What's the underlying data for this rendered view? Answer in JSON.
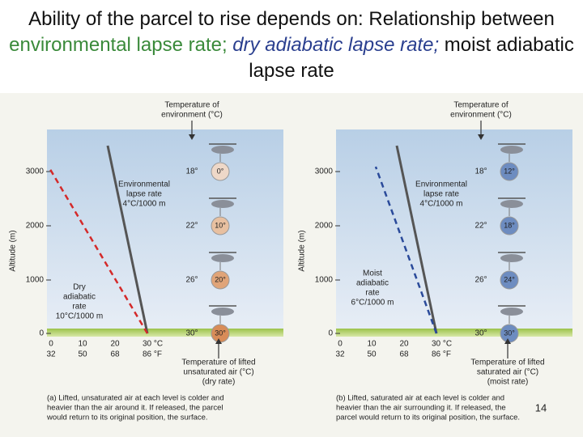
{
  "title": {
    "lead": "Ability of the parcel to rise depends on: Relationship between",
    "environmental": "environmental lapse rate;",
    "dry": "dry adiabatic lapse rate;",
    "moist": "moist adiabatic lapse rate"
  },
  "panels": [
    {
      "top_label": [
        "Temperature of",
        "environment (°C)"
      ],
      "y_axis_label": "Altitude (m)",
      "altitudes": [
        "3000",
        "2000",
        "1000",
        "0"
      ],
      "environment_temps": [
        "18°",
        "22°",
        "26°",
        "30°"
      ],
      "parcel_temps": [
        "0°",
        "10°",
        "20°",
        "30°"
      ],
      "environment_label": [
        "Environmental",
        "lapse rate",
        "4°C/1000 m"
      ],
      "parcel_rate_label": [
        "Dry",
        "adiabatic",
        "rate",
        "10°C/1000 m"
      ],
      "celsius_ticks": [
        "0",
        "10",
        "20",
        "30 °C"
      ],
      "fahrenheit_ticks": [
        "32",
        "50",
        "68",
        "86 °F"
      ],
      "bottom_label": [
        "Temperature of lifted",
        "unsaturated air (°C)",
        "(dry rate)"
      ],
      "caption": [
        "(a) Lifted, unsaturated air at each level is colder and",
        "heavier than the air around it. If released, the parcel",
        "would return to its original position, the surface."
      ]
    },
    {
      "top_label": [
        "Temperature of",
        "environment (°C)"
      ],
      "y_axis_label": "Altitude (m)",
      "altitudes": [
        "3000",
        "2000",
        "1000",
        "0"
      ],
      "environment_temps": [
        "18°",
        "22°",
        "26°",
        "30°"
      ],
      "parcel_temps": [
        "12°",
        "18°",
        "24°",
        "30°"
      ],
      "environment_label": [
        "Environmental",
        "lapse rate",
        "4°C/1000 m"
      ],
      "parcel_rate_label": [
        "Moist",
        "adiabatic",
        "rate",
        "6°C/1000 m"
      ],
      "celsius_ticks": [
        "0",
        "10",
        "20",
        "30 °C"
      ],
      "fahrenheit_ticks": [
        "32",
        "50",
        "68",
        "86 °F"
      ],
      "bottom_label": [
        "Temperature of lifted",
        "saturated air (°C)",
        "(moist rate)"
      ],
      "caption": [
        "(b) Lifted, saturated air at each level is colder and",
        "heavier than the air surrounding it. If released, the",
        "parcel would return to its original position, the surface."
      ]
    }
  ],
  "page_number": "14"
}
